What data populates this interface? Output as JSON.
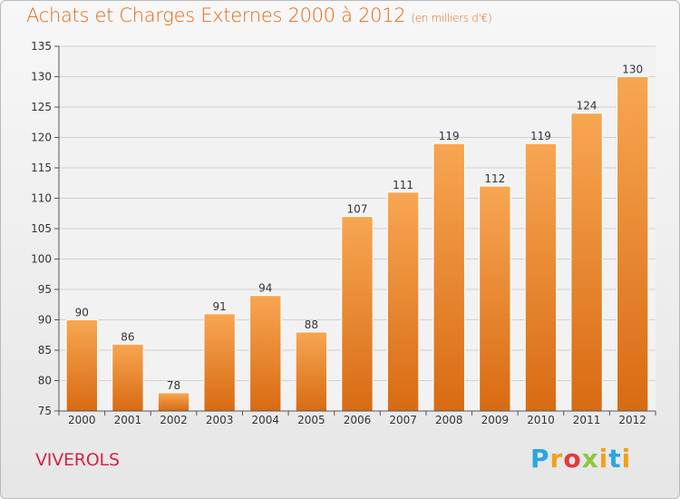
{
  "title": "Achats et Charges Externes 2000 à 2012",
  "unit": "(en milliers d'€)",
  "commune": "VIVEROLS",
  "logo": {
    "letters": [
      "P",
      "r",
      "o",
      "x",
      "i",
      "t",
      "i"
    ]
  },
  "colors": {
    "bar_light": "#f8a652",
    "bar_dark": "#d86b13",
    "title": "#e06a16",
    "commune": "#d1254b",
    "grid": "#d0d0d0"
  },
  "chart_data": {
    "type": "bar",
    "title": "Achats et Charges Externes 2000 à 2012",
    "subtitle": "(en milliers d'€)",
    "categories": [
      "2000",
      "2001",
      "2002",
      "2003",
      "2004",
      "2005",
      "2006",
      "2007",
      "2008",
      "2009",
      "2010",
      "2011",
      "2012"
    ],
    "values": [
      90,
      86,
      78,
      91,
      94,
      88,
      107,
      111,
      119,
      112,
      119,
      124,
      130
    ],
    "ylim": [
      75,
      135
    ],
    "yticks": [
      75,
      80,
      85,
      90,
      95,
      100,
      105,
      110,
      115,
      120,
      125,
      130,
      135
    ],
    "xlabel": "",
    "ylabel": "",
    "grid": true,
    "data_labels": true
  }
}
